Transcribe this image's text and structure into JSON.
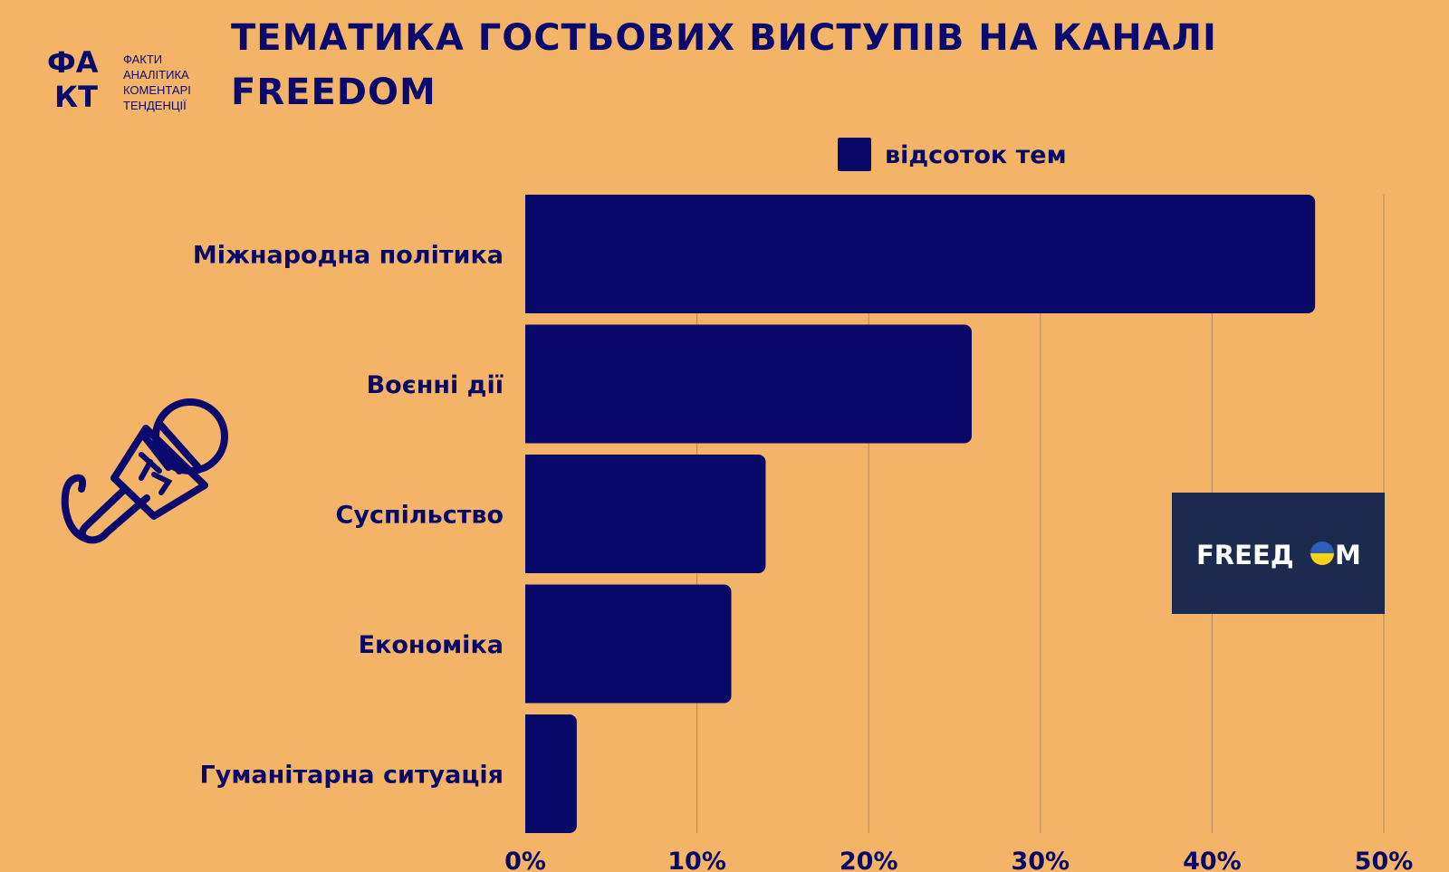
{
  "logo": {
    "mark_top": "ФА",
    "mark_bottom": "КТ",
    "lines": [
      "ФАКТИ",
      "АНАЛІТИКА",
      "КОМЕНТАРІ",
      "ТЕНДЕНЦІЇ"
    ]
  },
  "colors": {
    "background": "#F4B467",
    "bar": "#080868",
    "grid": "#B08A5E",
    "brand_box": "#1C2A4F",
    "flag_blue": "#2B5FB8",
    "flag_yellow": "#F7D117"
  },
  "icons": [
    "microphone-tv-icon",
    "freedom-logo"
  ],
  "brand_text": "FREEДOM",
  "chart_data": {
    "type": "bar",
    "orientation": "horizontal",
    "title": "ТЕМАТИКА ГОСТЬОВИХ ВИСТУПІВ НА КАНАЛІ FREEDOM",
    "categories": [
      "Міжнародна політика",
      "Воєнні дії",
      "Суспільство",
      "Економіка",
      "Гуманітарна ситуація"
    ],
    "series": [
      {
        "name": "відсоток тем",
        "values": [
          46,
          26,
          14,
          12,
          3
        ]
      }
    ],
    "xlim": [
      0,
      50
    ],
    "xticks": [
      "0%",
      "10%",
      "20%",
      "30%",
      "40%",
      "50%"
    ],
    "grid": "vertical",
    "legend": "top"
  }
}
